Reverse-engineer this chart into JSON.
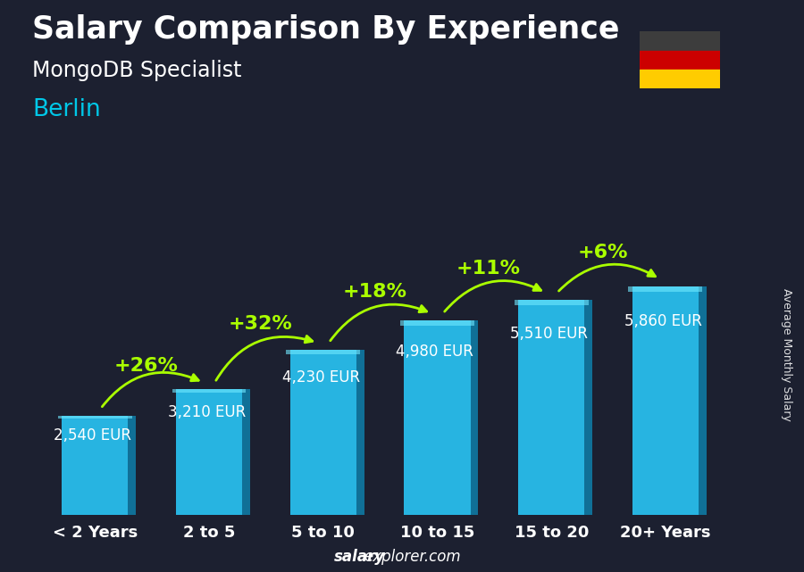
{
  "title": "Salary Comparison By Experience",
  "subtitle": "MongoDB Specialist",
  "city": "Berlin",
  "ylabel": "Average Monthly Salary",
  "footer_bold": "salary",
  "footer_rest": "explorer.com",
  "categories": [
    "< 2 Years",
    "2 to 5",
    "5 to 10",
    "10 to 15",
    "15 to 20",
    "20+ Years"
  ],
  "values": [
    2540,
    3210,
    4230,
    4980,
    5510,
    5860
  ],
  "labels": [
    "2,540 EUR",
    "3,210 EUR",
    "4,230 EUR",
    "4,980 EUR",
    "5,510 EUR",
    "5,860 EUR"
  ],
  "pct_changes": [
    null,
    "+26%",
    "+32%",
    "+18%",
    "+11%",
    "+6%"
  ],
  "bar_color": "#29c5f6",
  "bar_color_dark": "#0e7faa",
  "bar_color_side": "#1aa3d4",
  "bg_color": "#1c2030",
  "text_color_white": "#ffffff",
  "text_color_cyan": "#00c8e8",
  "text_color_green": "#aaff00",
  "title_fontsize": 25,
  "subtitle_fontsize": 17,
  "city_fontsize": 19,
  "label_fontsize": 12,
  "pct_fontsize": 16,
  "cat_fontsize": 13,
  "ylim": [
    0,
    8500
  ],
  "flag_colors": [
    "#3d3d3d",
    "#cc0000",
    "#ffcc00"
  ]
}
